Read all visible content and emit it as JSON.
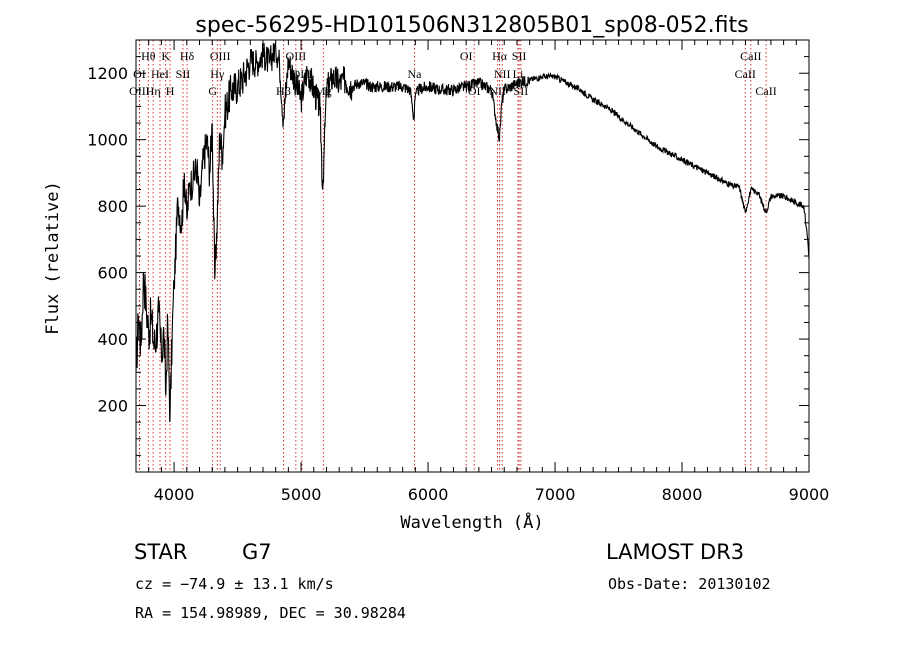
{
  "chart_data": {
    "type": "line",
    "title": "spec-56295-HD101506N312805B01_sp08-052.fits",
    "xlabel": "Wavelength (Å)",
    "ylabel": "Flux (relative)",
    "xlim": [
      3700,
      9000
    ],
    "ylim": [
      0,
      1300
    ],
    "xticks": [
      4000,
      5000,
      6000,
      7000,
      8000,
      9000
    ],
    "yticks": [
      200,
      400,
      600,
      800,
      1000,
      1200
    ],
    "series": [
      {
        "name": "flux",
        "x": [
          3700,
          3720,
          3740,
          3760,
          3780,
          3800,
          3820,
          3840,
          3860,
          3880,
          3900,
          3920,
          3935,
          3950,
          3968,
          3985,
          4000,
          4030,
          4060,
          4080,
          4101,
          4120,
          4150,
          4180,
          4200,
          4230,
          4260,
          4280,
          4300,
          4320,
          4340,
          4360,
          4380,
          4400,
          4450,
          4500,
          4550,
          4600,
          4650,
          4700,
          4750,
          4800,
          4830,
          4861,
          4900,
          4950,
          5000,
          5050,
          5100,
          5150,
          5170,
          5183,
          5200,
          5250,
          5300,
          5350,
          5400,
          5450,
          5500,
          5550,
          5600,
          5700,
          5800,
          5860,
          5890,
          5895,
          5920,
          6000,
          6100,
          6200,
          6300,
          6400,
          6500,
          6540,
          6563,
          6580,
          6600,
          6700,
          6800,
          6900,
          7000,
          7100,
          7200,
          7300,
          7400,
          7500,
          7600,
          7700,
          7800,
          7900,
          8000,
          8100,
          8200,
          8300,
          8400,
          8450,
          8498,
          8542,
          8600,
          8662,
          8700,
          8800,
          8900,
          8960,
          8990,
          9000
        ],
        "values": [
          300,
          470,
          380,
          600,
          500,
          420,
          470,
          380,
          410,
          480,
          350,
          420,
          230,
          460,
          160,
          420,
          560,
          820,
          740,
          900,
          760,
          860,
          880,
          920,
          800,
          940,
          1000,
          900,
          1050,
          580,
          760,
          1020,
          950,
          1080,
          1150,
          1160,
          1190,
          1240,
          1230,
          1260,
          1230,
          1280,
          1230,
          1060,
          1240,
          1180,
          1120,
          1210,
          1150,
          1090,
          850,
          980,
          1150,
          1190,
          1170,
          1180,
          1160,
          1170,
          1170,
          1160,
          1160,
          1160,
          1160,
          1150,
          1060,
          1120,
          1150,
          1160,
          1150,
          1150,
          1160,
          1170,
          1150,
          1050,
          1000,
          1110,
          1150,
          1170,
          1180,
          1190,
          1190,
          1170,
          1150,
          1120,
          1100,
          1070,
          1040,
          1010,
          980,
          960,
          940,
          920,
          900,
          880,
          860,
          860,
          780,
          850,
          840,
          780,
          830,
          830,
          810,
          800,
          700,
          640
        ]
      }
    ],
    "spectral_lines": [
      {
        "label": "Hθ",
        "wavelength": 3797,
        "row": 0
      },
      {
        "label": "K",
        "wavelength": 3934,
        "row": 0
      },
      {
        "label": "Hδ",
        "wavelength": 4102,
        "row": 0
      },
      {
        "label": "OIII",
        "wavelength": 4363,
        "row": 0
      },
      {
        "label": "OIII",
        "wavelength": 4959,
        "row": 0
      },
      {
        "label": "OI",
        "wavelength": 6300,
        "row": 0
      },
      {
        "label": "Hα",
        "wavelength": 6563,
        "row": 0
      },
      {
        "label": "SII",
        "wavelength": 6717,
        "row": 0
      },
      {
        "label": "CaII",
        "wavelength": 8542,
        "row": 0
      },
      {
        "label": "OI",
        "wavelength": 3727,
        "row": 1
      },
      {
        "label": "HeI",
        "wavelength": 3889,
        "row": 1
      },
      {
        "label": "SII",
        "wavelength": 4070,
        "row": 1
      },
      {
        "label": "Hγ",
        "wavelength": 4340,
        "row": 1
      },
      {
        "label": "OIII",
        "wavelength": 5007,
        "row": 1
      },
      {
        "label": "Na",
        "wavelength": 5893,
        "row": 1
      },
      {
        "label": "NII",
        "wavelength": 6584,
        "row": 1
      },
      {
        "label": "Li",
        "wavelength": 6708,
        "row": 1
      },
      {
        "label": "CaII",
        "wavelength": 8498,
        "row": 1
      },
      {
        "label": "OIII",
        "wavelength": 3727,
        "row": 2
      },
      {
        "label": "Hη",
        "wavelength": 3835,
        "row": 2
      },
      {
        "label": "H",
        "wavelength": 3968,
        "row": 2
      },
      {
        "label": "G",
        "wavelength": 4304,
        "row": 2
      },
      {
        "label": "Hβ",
        "wavelength": 4861,
        "row": 2
      },
      {
        "label": "Mg",
        "wavelength": 5175,
        "row": 2
      },
      {
        "label": "OI",
        "wavelength": 6363,
        "row": 2
      },
      {
        "label": "NII",
        "wavelength": 6548,
        "row": 2
      },
      {
        "label": "SII",
        "wavelength": 6731,
        "row": 2
      },
      {
        "label": "CaII",
        "wavelength": 8662,
        "row": 2
      }
    ]
  },
  "info": {
    "object_class": "STAR",
    "subclass": "G7",
    "survey": "LAMOST DR3",
    "redshift": "cz = −74.9 ± 13.1 km/s",
    "obs_date": "Obs-Date: 20130102",
    "coords": "RA = 154.98989, DEC =  30.98284"
  },
  "colors": {
    "spectrum": "#000000",
    "line_markers": "#cc0000"
  }
}
